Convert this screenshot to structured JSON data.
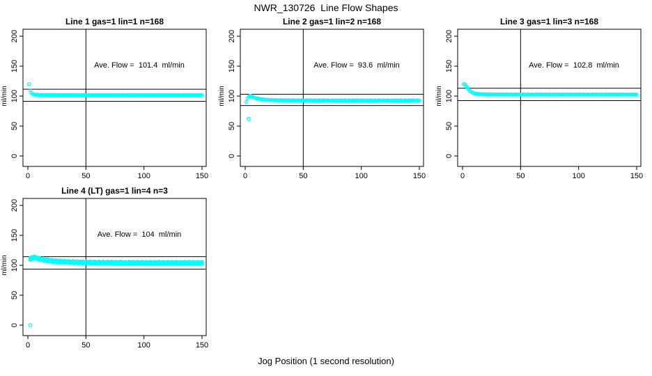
{
  "figure": {
    "title": "NWR_130726  Line Flow Shapes",
    "xlabel": "Jog Position (1 second resolution)",
    "background": "#ffffff",
    "axis_color": "#000000",
    "point_color": "#00ffff"
  },
  "chart_data": [
    {
      "type": "scatter",
      "title": "Line 1 gas=1 lin=1 n=168",
      "annotation": "Ave. Flow =  101.4  ml/min",
      "ave_flow_ml_min": 101.4,
      "n": 168,
      "ylabel": "ml/min",
      "xticks": [
        0,
        50,
        100,
        150
      ],
      "yticks": [
        0,
        50,
        100,
        150,
        200
      ],
      "xlim": [
        0,
        150
      ],
      "ylim": [
        0,
        200
      ],
      "vline_x": 50,
      "hlines": [
        111.5,
        91.3
      ],
      "marker": "open-circle",
      "color": "#00ffff",
      "band_passes": 1,
      "jitter": 0.35,
      "series_keypoints": [
        [
          2,
          110
        ],
        [
          3,
          105.5
        ],
        [
          4,
          103.5
        ],
        [
          5,
          102.8
        ],
        [
          7,
          102.2
        ],
        [
          10,
          101.9
        ],
        [
          15,
          101.7
        ],
        [
          30,
          101.6
        ],
        [
          60,
          101.5
        ],
        [
          100,
          101.5
        ],
        [
          150,
          101.5
        ]
      ],
      "outliers": [
        [
          1,
          120
        ]
      ]
    },
    {
      "type": "scatter",
      "title": "Line 2 gas=1 lin=2 n=168",
      "annotation": "Ave. Flow =  93.6  ml/min",
      "ave_flow_ml_min": 93.6,
      "n": 168,
      "ylabel": "ml/min",
      "xticks": [
        0,
        50,
        100,
        150
      ],
      "yticks": [
        0,
        50,
        100,
        150,
        200
      ],
      "xlim": [
        0,
        150
      ],
      "ylim": [
        0,
        200
      ],
      "vline_x": 50,
      "hlines": [
        103.0,
        84.2
      ],
      "marker": "open-circle",
      "color": "#00ffff",
      "band_passes": 1,
      "jitter": 0.4,
      "series_keypoints": [
        [
          1,
          90
        ],
        [
          2,
          96
        ],
        [
          3,
          99.5
        ],
        [
          4,
          100.3
        ],
        [
          5,
          100
        ],
        [
          6,
          99
        ],
        [
          8,
          97.3
        ],
        [
          10,
          96
        ],
        [
          13,
          94.8
        ],
        [
          17,
          94
        ],
        [
          22,
          93.4
        ],
        [
          30,
          93
        ],
        [
          50,
          92.8
        ],
        [
          90,
          92.7
        ],
        [
          150,
          92.7
        ]
      ],
      "outliers": [
        [
          3,
          62
        ]
      ]
    },
    {
      "type": "scatter",
      "title": "Line 3 gas=1 lin=3 n=168",
      "annotation": "Ave. Flow =  102.8  ml/min",
      "ave_flow_ml_min": 102.8,
      "n": 168,
      "ylabel": "ml/min",
      "xticks": [
        0,
        50,
        100,
        150
      ],
      "yticks": [
        0,
        50,
        100,
        150,
        200
      ],
      "xlim": [
        0,
        150
      ],
      "ylim": [
        0,
        200
      ],
      "vline_x": 50,
      "hlines": [
        113.1,
        92.5
      ],
      "marker": "open-circle",
      "color": "#00ffff",
      "band_passes": 1,
      "jitter": 0.35,
      "series_keypoints": [
        [
          1,
          119.5
        ],
        [
          2,
          120
        ],
        [
          3,
          117.5
        ],
        [
          4,
          114.5
        ],
        [
          5,
          111.5
        ],
        [
          6,
          109.5
        ],
        [
          7,
          107.8
        ],
        [
          8,
          106.5
        ],
        [
          9,
          105.5
        ],
        [
          10,
          104.8
        ],
        [
          12,
          103.8
        ],
        [
          15,
          103.2
        ],
        [
          20,
          102.9
        ],
        [
          30,
          102.7
        ],
        [
          60,
          102.6
        ],
        [
          100,
          102.6
        ],
        [
          150,
          102.6
        ]
      ],
      "outliers": []
    },
    {
      "type": "scatter",
      "title": "Line 4 (LT) gas=1 lin=4 n=3",
      "annotation": "Ave. Flow =  104  ml/min",
      "ave_flow_ml_min": 104,
      "n": 3,
      "ylabel": "ml/min",
      "xticks": [
        0,
        50,
        100,
        150
      ],
      "yticks": [
        0,
        50,
        100,
        150,
        200
      ],
      "xlim": [
        0,
        150
      ],
      "ylim": [
        0,
        200
      ],
      "vline_x": 50,
      "hlines": [
        114.4,
        93.6
      ],
      "marker": "open-circle",
      "color": "#00ffff",
      "band_passes": 3,
      "jitter": 0.7,
      "series_keypoints": [
        [
          2,
          110.5
        ],
        [
          3,
          112
        ],
        [
          4,
          113
        ],
        [
          5,
          113.2
        ],
        [
          6,
          112.8
        ],
        [
          8,
          111.8
        ],
        [
          10,
          110.8
        ],
        [
          13,
          109.5
        ],
        [
          17,
          108.2
        ],
        [
          22,
          107
        ],
        [
          28,
          106.2
        ],
        [
          35,
          105.5
        ],
        [
          45,
          104.9
        ],
        [
          60,
          104.5
        ],
        [
          80,
          104.2
        ],
        [
          100,
          104.1
        ],
        [
          120,
          104
        ],
        [
          150,
          104
        ]
      ],
      "outliers": [
        [
          2,
          0
        ]
      ]
    }
  ]
}
